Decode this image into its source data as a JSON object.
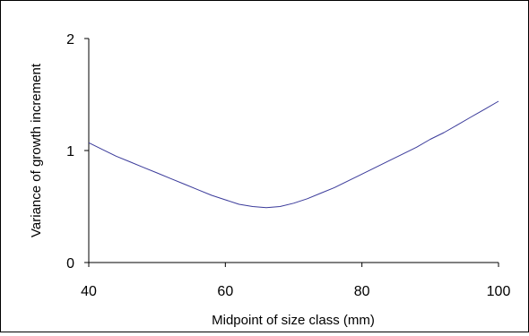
{
  "chart_data": {
    "type": "line",
    "title": "",
    "xlabel": "Midpoint of size class (mm)",
    "ylabel": "Variance of growth increment",
    "xlim": [
      40,
      100
    ],
    "ylim": [
      0,
      2
    ],
    "xticks": [
      "40",
      "60",
      "80",
      "100"
    ],
    "yticks": [
      "0",
      "1",
      "2"
    ],
    "grid": false,
    "legend": "none",
    "line_color": "#3a3a9a",
    "series": [
      {
        "x": [
          40,
          42,
          44,
          46,
          48,
          50,
          52,
          54,
          56,
          58,
          60,
          62,
          64,
          66,
          68,
          70,
          72,
          74,
          76,
          78,
          80,
          82,
          84,
          86,
          88,
          90,
          92,
          94,
          96,
          98,
          100
        ],
        "values": [
          1.07,
          1.01,
          0.95,
          0.9,
          0.85,
          0.8,
          0.75,
          0.7,
          0.65,
          0.6,
          0.56,
          0.52,
          0.5,
          0.49,
          0.5,
          0.53,
          0.57,
          0.62,
          0.67,
          0.73,
          0.79,
          0.85,
          0.91,
          0.97,
          1.03,
          1.1,
          1.16,
          1.23,
          1.3,
          1.37,
          1.44
        ]
      }
    ]
  }
}
